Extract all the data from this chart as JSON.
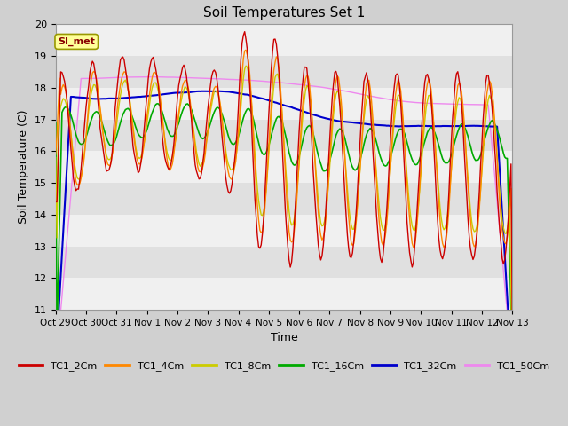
{
  "title": "Soil Temperatures Set 1",
  "ylabel": "Soil Temperature (C)",
  "xlabel": "Time",
  "ylim": [
    11.0,
    20.0
  ],
  "yticks": [
    11.0,
    12.0,
    13.0,
    14.0,
    15.0,
    16.0,
    17.0,
    18.0,
    19.0,
    20.0
  ],
  "xtick_labels": [
    "Oct 29",
    "Oct 30",
    "Oct 31",
    "Nov 1",
    "Nov 2",
    "Nov 3",
    "Nov 4",
    "Nov 5",
    "Nov 6",
    "Nov 7",
    "Nov 8",
    "Nov 9",
    "Nov 10",
    "Nov 11",
    "Nov 12",
    "Nov 13"
  ],
  "colors": {
    "TC1_2Cm": "#cc0000",
    "TC1_4Cm": "#ff8800",
    "TC1_8Cm": "#cccc00",
    "TC1_16Cm": "#00aa00",
    "TC1_32Cm": "#0000cc",
    "TC1_50Cm": "#ee88ee"
  },
  "annotation_text": "SI_met",
  "fig_bg": "#d0d0d0",
  "plot_bg": "#e8e8e8",
  "band_light": "#f0f0f0",
  "band_dark": "#e0e0e0"
}
